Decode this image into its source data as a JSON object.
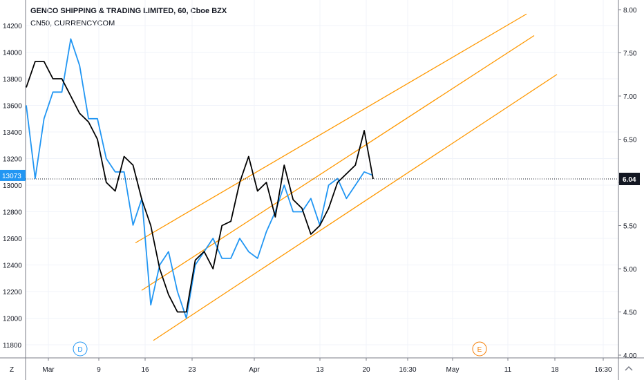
{
  "header": {
    "title": "GENCO SHIPPING & TRADING LIMITED, 60, Cboe BZX",
    "overlay": "CN50, CURRENCYCOM"
  },
  "left_axis": {
    "ticks": [
      "14200",
      "14000",
      "13800",
      "13600",
      "13400",
      "13200",
      "13000",
      "12800",
      "12600",
      "12400",
      "12200",
      "12000",
      "11800"
    ],
    "current_label": "13073"
  },
  "right_axis": {
    "ticks": [
      "8.00",
      "7.50",
      "7.00",
      "6.50",
      "6.00",
      "5.50",
      "5.00",
      "4.50",
      "4.00"
    ],
    "current_label": "6.04"
  },
  "x_axis": {
    "ticks": [
      "Mar",
      "9",
      "16",
      "23",
      "Apr",
      "13",
      "20",
      "16:30",
      "May",
      "11",
      "18",
      "16:30"
    ]
  },
  "markers": [
    {
      "label": "D",
      "color": "#2196f3"
    },
    {
      "label": "E",
      "color": "#f57c00"
    }
  ],
  "bottom_left": {
    "label": "Z"
  },
  "colors": {
    "gnk": "#000000",
    "cn50": "#2196f3",
    "channel": "#ff9800",
    "grid": "#f0f3fa",
    "axis": "#787b86",
    "label_bg": "#2196f3",
    "price_bg": "#131722"
  },
  "chart_data": {
    "type": "line",
    "xlabel": "",
    "ylabel": "",
    "series": [
      {
        "name": "GENCO SHIPPING & TRADING LIMITED",
        "axis": "right",
        "x": [
          "Feb 25",
          "Feb 26",
          "Feb 27",
          "Feb 28",
          "Mar 2",
          "Mar 3",
          "Mar 4",
          "Mar 5",
          "Mar 6",
          "Mar 9",
          "Mar 10",
          "Mar 11",
          "Mar 12",
          "Mar 13",
          "Mar 16",
          "Mar 17",
          "Mar 18",
          "Mar 19",
          "Mar 20",
          "Mar 23",
          "Mar 24",
          "Mar 25",
          "Mar 26",
          "Mar 27",
          "Mar 30",
          "Mar 31",
          "Apr 1",
          "Apr 2",
          "Apr 3",
          "Apr 6",
          "Apr 7",
          "Apr 8",
          "Apr 9",
          "Apr 13",
          "Apr 14",
          "Apr 15",
          "Apr 16",
          "Apr 17",
          "Apr 20",
          "Apr 21"
        ],
        "values": [
          7.1,
          7.4,
          7.4,
          7.2,
          7.2,
          7.0,
          6.8,
          6.7,
          6.5,
          6.0,
          5.9,
          6.3,
          6.2,
          5.8,
          5.5,
          5.0,
          4.7,
          4.5,
          4.5,
          5.1,
          5.2,
          5.0,
          5.5,
          5.55,
          6.0,
          6.3,
          5.9,
          6.0,
          5.6,
          6.2,
          5.8,
          5.7,
          5.4,
          5.5,
          5.7,
          6.0,
          6.1,
          6.2,
          6.6,
          6.04
        ]
      },
      {
        "name": "CN50, CURRENCYCOM",
        "axis": "left",
        "x": [
          "Feb 25",
          "Feb 26",
          "Feb 27",
          "Feb 28",
          "Mar 2",
          "Mar 3",
          "Mar 4",
          "Mar 5",
          "Mar 6",
          "Mar 9",
          "Mar 10",
          "Mar 11",
          "Mar 12",
          "Mar 13",
          "Mar 16",
          "Mar 17",
          "Mar 18",
          "Mar 19",
          "Mar 20",
          "Mar 23",
          "Mar 24",
          "Mar 25",
          "Mar 26",
          "Mar 27",
          "Mar 30",
          "Mar 31",
          "Apr 1",
          "Apr 2",
          "Apr 3",
          "Apr 6",
          "Apr 7",
          "Apr 8",
          "Apr 9",
          "Apr 13",
          "Apr 14",
          "Apr 15",
          "Apr 16",
          "Apr 17",
          "Apr 20",
          "Apr 21"
        ],
        "values": [
          13600,
          13050,
          13500,
          13700,
          13700,
          14100,
          13900,
          13500,
          13500,
          13200,
          13100,
          13100,
          12700,
          12900,
          12100,
          12400,
          12500,
          12200,
          12000,
          12400,
          12500,
          12600,
          12450,
          12450,
          12600,
          12500,
          12450,
          12650,
          12800,
          13000,
          12800,
          12800,
          12900,
          12700,
          13000,
          13050,
          12900,
          13000,
          13100,
          13073
        ]
      }
    ],
    "ylim_left": [
      11700,
      14300
    ],
    "ylim_right": [
      4.0,
      8.0
    ],
    "grid": true
  }
}
